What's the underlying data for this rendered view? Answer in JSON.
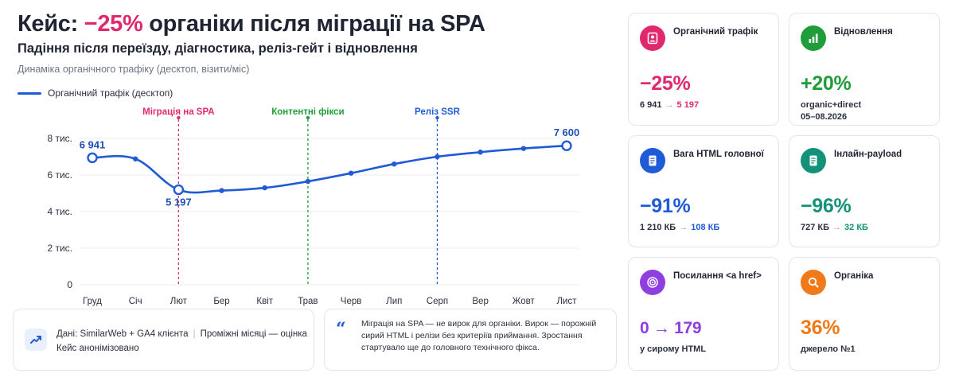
{
  "header": {
    "title_prefix": "Кейс: ",
    "title_accent": "−25%",
    "title_suffix": " органіки після міграції на SPA",
    "subtitle": "Падіння після переїзду, діагностика, реліз-гейт і відновлення",
    "caption": "Динаміка органічного трафіку (десктоп, візити/міс)"
  },
  "chart_data": {
    "type": "line",
    "categories": [
      "Груд",
      "Січ",
      "Лют",
      "Бер",
      "Квіт",
      "Трав",
      "Черв",
      "Лип",
      "Серп",
      "Вер",
      "Жовт",
      "Лист"
    ],
    "series": [
      {
        "name": "Органічний трафік (десктоп)",
        "color": "#1f5bd6",
        "values": [
          6941,
          6880,
          5197,
          5150,
          5300,
          5650,
          6100,
          6600,
          7000,
          7250,
          7450,
          7600
        ]
      }
    ],
    "y_ticks": [
      {
        "value": 0,
        "label": "0"
      },
      {
        "value": 2000,
        "label": "2 тис."
      },
      {
        "value": 4000,
        "label": "4 тис."
      },
      {
        "value": 6000,
        "label": "6 тис."
      },
      {
        "value": 8000,
        "label": "8 тис."
      }
    ],
    "ylim": [
      0,
      8000
    ],
    "grid": true,
    "legend_position": "top-left",
    "point_labels": [
      {
        "index": 0,
        "label": "6 941",
        "position": "above"
      },
      {
        "index": 2,
        "label": "5 197",
        "position": "below"
      },
      {
        "index": 11,
        "label": "7 600",
        "position": "above"
      }
    ],
    "events": [
      {
        "index": 2,
        "label": "Міграція на SPA",
        "color": "#e0286f"
      },
      {
        "index": 5,
        "label": "Контентні фікси",
        "color": "#1f9d3a"
      },
      {
        "index": 8,
        "label": "Реліз SSR",
        "color": "#1f5bd6"
      }
    ]
  },
  "notes": {
    "source": "Дані: SimilarWeb + GA4 клієнта",
    "interim": "Проміжні місяці — оцінка",
    "anon": "Кейс анонімізовано",
    "quote": "Міграція на SPA — не вирок для органіки. Вирок — порожній сирий HTML і релізи без критеріїв приймання. Зростання стартувало ще до головного технічного фікса."
  },
  "cards": [
    {
      "label": "Органічний трафік",
      "value": "−25%",
      "from": "6 941",
      "to": "5 197",
      "accent": "#e0286f",
      "icon": "user-icon"
    },
    {
      "label": "Відновлення",
      "value": "+20%",
      "note1": "organic+direct",
      "note2": "05–08.2026",
      "accent": "#1f9d3a",
      "icon": "bar-chart-icon"
    },
    {
      "label": "Вага HTML головної",
      "value": "−91%",
      "from": "1 210 КБ",
      "to": "108 КБ",
      "accent": "#1f5bd6",
      "icon": "document-icon"
    },
    {
      "label": "Інлайн-payload",
      "value": "−96%",
      "from": "727 КБ",
      "to": "32 КБ",
      "accent": "#149279",
      "icon": "document-icon"
    },
    {
      "label": "Посилання <a href>",
      "value": "0 → 179",
      "note1": "у сирому HTML",
      "accent": "#8f3fe0",
      "icon": "target-icon"
    },
    {
      "label": "Органіка",
      "value": "36%",
      "note1": "джерело №1",
      "accent": "#f07a1a",
      "icon": "search-icon"
    }
  ]
}
